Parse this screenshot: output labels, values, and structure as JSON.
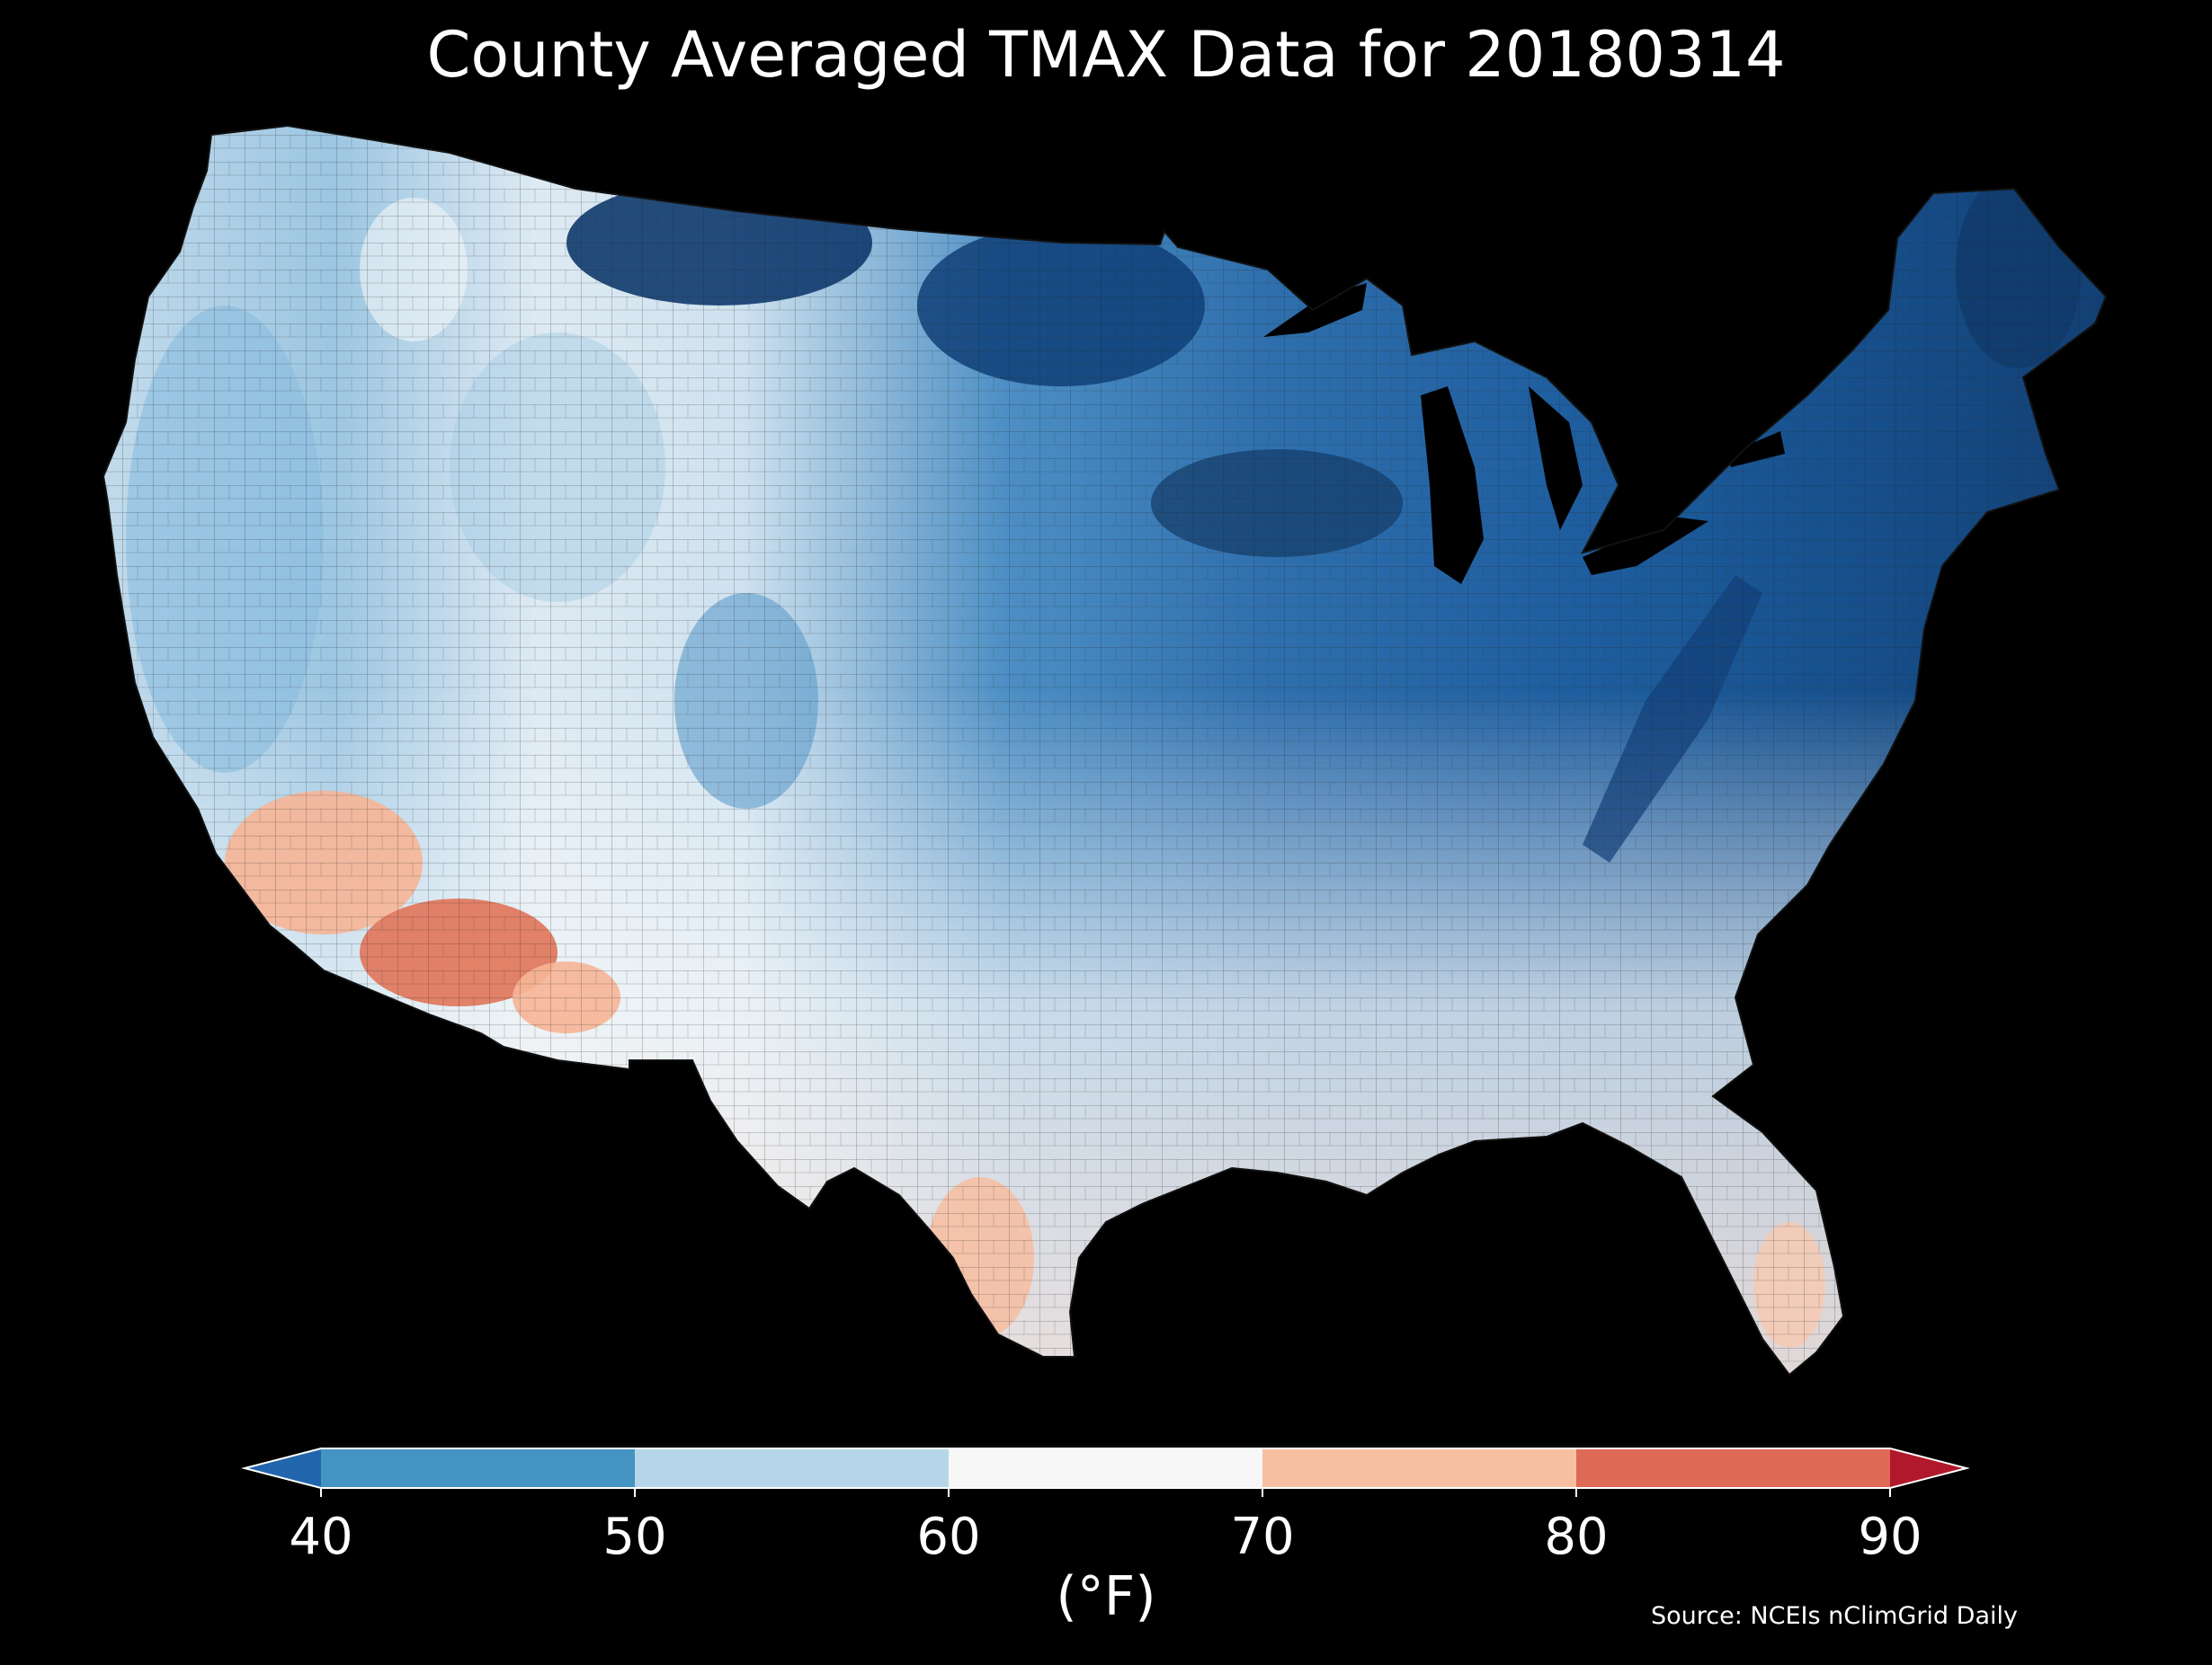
{
  "title": "County Averaged TMAX Data for 20180314",
  "colorbar": {
    "units": "(°F)",
    "ticks": [
      "40",
      "50",
      "60",
      "70",
      "80",
      "90"
    ],
    "bins": [
      {
        "range": "<40",
        "color": "#2166ac"
      },
      {
        "range": "40-50",
        "color": "#4393c3"
      },
      {
        "range": "50-60",
        "color": "#b5d6e9"
      },
      {
        "range": "60-70",
        "color": "#f7f7f7"
      },
      {
        "range": "70-80",
        "color": "#f8c0a3"
      },
      {
        "range": "80-90",
        "color": "#de6a55"
      },
      {
        "range": ">90",
        "color": "#b2182b"
      }
    ]
  },
  "source": "Source: NCEIs nClimGrid Daily",
  "map": {
    "region": "Contiguous United States",
    "variable": "TMAX",
    "background": "#000000"
  }
}
